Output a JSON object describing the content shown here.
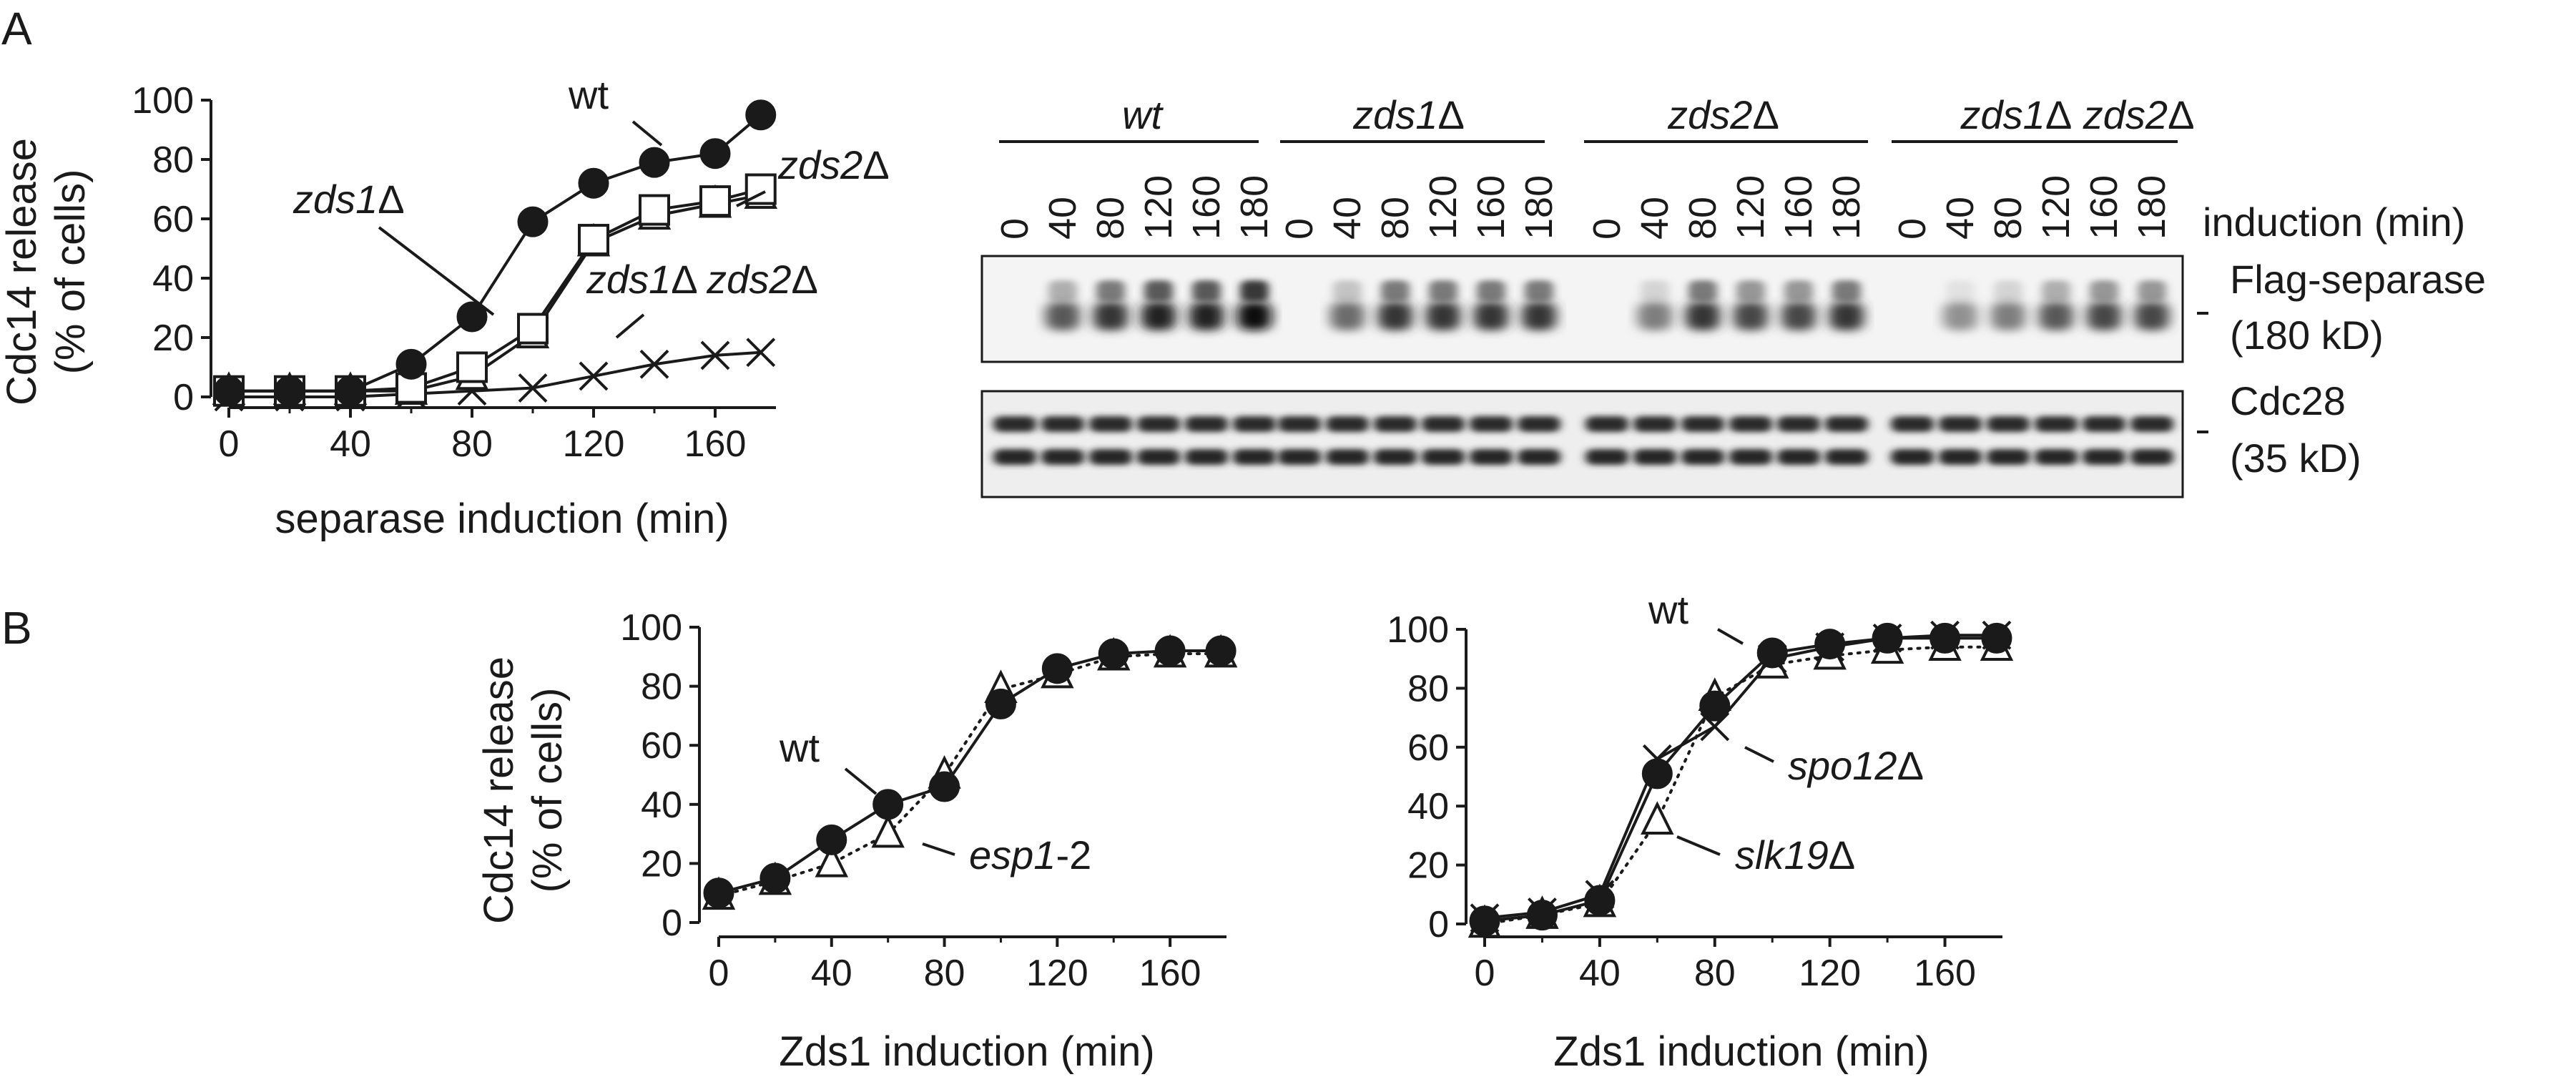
{
  "panel_labels": {
    "a": "A",
    "b": "B"
  },
  "chart_data": [
    {
      "id": "A-graph",
      "type": "line",
      "xlabel": "separase induction (min)",
      "ylabel_line1": "Cdc14 release",
      "ylabel_line2": "(% of cells)",
      "xlim": [
        0,
        180
      ],
      "ylim": [
        0,
        100
      ],
      "xticks": [
        0,
        40,
        80,
        120,
        160
      ],
      "yticks": [
        0,
        20,
        40,
        60,
        80,
        100
      ],
      "series": [
        {
          "name": "wt",
          "marker": "circle-filled",
          "line": "solid",
          "x": [
            0,
            20,
            40,
            60,
            80,
            100,
            120,
            140,
            160,
            175
          ],
          "y": [
            2,
            2,
            2,
            11,
            27,
            59,
            72,
            79,
            82,
            95
          ]
        },
        {
          "name": "zds1Δ",
          "marker": "square-open",
          "line": "solid",
          "x": [
            0,
            20,
            40,
            60,
            80,
            100,
            120,
            140,
            160,
            175
          ],
          "y": [
            2,
            2,
            2,
            3,
            10,
            23,
            53,
            63,
            66,
            70
          ]
        },
        {
          "name": "zds2Δ",
          "marker": "triangle-open",
          "line": "solid",
          "x": [
            0,
            20,
            40,
            60,
            80,
            100,
            120,
            140,
            160,
            175
          ],
          "y": [
            2,
            2,
            2,
            2,
            7,
            21,
            52,
            61,
            65,
            68
          ]
        },
        {
          "name": "zds1Δ zds2Δ",
          "marker": "x",
          "line": "solid",
          "x": [
            0,
            20,
            40,
            60,
            80,
            100,
            120,
            140,
            160,
            175
          ],
          "y": [
            0,
            0,
            0,
            1,
            2,
            3,
            7,
            11,
            14,
            15
          ]
        }
      ]
    },
    {
      "id": "B-left",
      "type": "line",
      "xlabel": "Zds1 induction (min)",
      "ylabel_line1": "Cdc14 release",
      "ylabel_line2": "(% of cells)",
      "xlim": [
        0,
        180
      ],
      "ylim": [
        0,
        100
      ],
      "xticks": [
        0,
        40,
        80,
        120,
        160
      ],
      "yticks": [
        0,
        20,
        40,
        60,
        80,
        100
      ],
      "series": [
        {
          "name": "wt",
          "marker": "circle-filled",
          "line": "solid",
          "x": [
            0,
            20,
            40,
            60,
            80,
            100,
            120,
            140,
            160,
            178
          ],
          "y": [
            10,
            15,
            28,
            40,
            46,
            74,
            86,
            91,
            92,
            92
          ]
        },
        {
          "name": "esp1-2",
          "marker": "triangle-open",
          "line": "dotted",
          "x": [
            0,
            20,
            40,
            60,
            80,
            100,
            120,
            140,
            160,
            178
          ],
          "y": [
            9,
            14,
            20,
            30,
            50,
            79,
            84,
            90,
            91,
            91
          ]
        }
      ]
    },
    {
      "id": "B-right",
      "type": "line",
      "xlabel": "Zds1 induction (min)",
      "ylabel_line1": "",
      "ylabel_line2": "",
      "xlim": [
        0,
        180
      ],
      "ylim": [
        0,
        100
      ],
      "xticks": [
        0,
        40,
        80,
        120,
        160
      ],
      "yticks": [
        0,
        20,
        40,
        60,
        80,
        100
      ],
      "series": [
        {
          "name": "wt",
          "marker": "circle-filled",
          "line": "solid",
          "x": [
            0,
            20,
            40,
            60,
            80,
            100,
            120,
            140,
            160,
            178
          ],
          "y": [
            1,
            3,
            8,
            51,
            74,
            92,
            95,
            97,
            97,
            97
          ]
        },
        {
          "name": "spo12Δ",
          "marker": "x",
          "line": "solid",
          "x": [
            0,
            20,
            40,
            60,
            80,
            100,
            120,
            140,
            160,
            178
          ],
          "y": [
            2,
            4,
            10,
            56,
            67,
            90,
            94,
            97,
            98,
            98
          ]
        },
        {
          "name": "slk19Δ",
          "marker": "triangle-open",
          "line": "dotted",
          "x": [
            0,
            20,
            40,
            60,
            80,
            100,
            120,
            140,
            160,
            178
          ],
          "y": [
            0,
            3,
            7,
            35,
            77,
            88,
            91,
            93,
            94,
            94
          ]
        }
      ]
    }
  ],
  "series_labels": {
    "a_wt": "wt",
    "a_zds1_main": "zds1",
    "a_zds1_delta": "Δ",
    "a_zds2_main": "zds2",
    "a_zds2_delta": "Δ",
    "a_double_main1": "zds1",
    "a_double_delta1": "Δ ",
    "a_double_main2": "zds2",
    "a_double_delta2": "Δ",
    "bl_wt": "wt",
    "bl_esp_main": "esp1",
    "bl_esp_suffix": "-2",
    "br_wt": "wt",
    "br_spo_main": "spo12",
    "br_spo_delta": "Δ",
    "br_slk_main": "slk19",
    "br_slk_delta": "Δ"
  },
  "blot": {
    "groups": [
      {
        "main": "wt",
        "delta": ""
      },
      {
        "main": "zds1",
        "delta": "Δ"
      },
      {
        "main": "zds2",
        "delta": "Δ"
      },
      {
        "main": "zds1",
        "delta": "Δ",
        "main2": " zds2",
        "delta2": "Δ"
      }
    ],
    "lane_labels": [
      "0",
      "40",
      "80",
      "120",
      "160",
      "180"
    ],
    "induction_label": "induction (min)",
    "upper_label_line1": "Flag-separase",
    "upper_label_line2": "(180 kD)",
    "lower_label_line1": "Cdc28",
    "lower_label_line2": "(35 kD)",
    "separase_intensity": [
      [
        0.0,
        0.6,
        0.8,
        0.9,
        0.9,
        1.0
      ],
      [
        0.0,
        0.5,
        0.8,
        0.8,
        0.8,
        0.8
      ],
      [
        0.0,
        0.4,
        0.8,
        0.7,
        0.7,
        0.8
      ],
      [
        0.0,
        0.3,
        0.4,
        0.6,
        0.7,
        0.7
      ]
    ]
  }
}
